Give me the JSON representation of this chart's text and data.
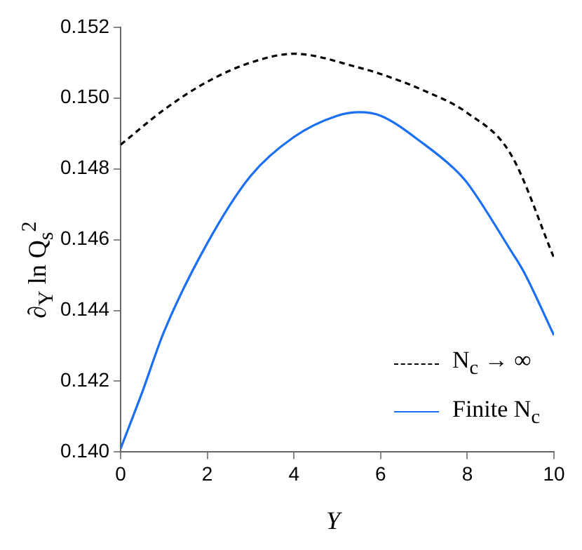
{
  "chart_data": {
    "type": "line",
    "xlabel": "Y",
    "ylabel": "∂$_{Y}$ ln Q$_{s}$$^{2}$",
    "xlim": [
      0,
      10
    ],
    "xticks": [
      0,
      2,
      4,
      6,
      8,
      10
    ],
    "ylim": [
      0.14,
      0.152
    ],
    "yticks": [
      {
        "value": 0.14,
        "label": "0.140"
      },
      {
        "value": 0.142,
        "label": "0.142"
      },
      {
        "value": 0.144,
        "label": "0.144"
      },
      {
        "value": 0.146,
        "label": "0.146"
      },
      {
        "value": 0.148,
        "label": "0.148"
      },
      {
        "value": 0.15,
        "label": "0.150"
      },
      {
        "value": 0.152,
        "label": "0.152"
      }
    ],
    "legend": "bottom right",
    "grid": false,
    "marker": "none",
    "series": [
      {
        "name": "N$_{c}$ → ∞",
        "color": "#000000",
        "line_style": "dashed",
        "x": [
          0,
          1,
          2,
          3,
          4,
          5.5,
          6,
          7,
          8,
          9,
          10
        ],
        "values": [
          0.14868,
          0.14967,
          0.15046,
          0.151,
          0.15125,
          0.15086,
          0.15068,
          0.15021,
          0.14958,
          0.14842,
          0.14549
        ]
      },
      {
        "name": "Finite N$_{c}$",
        "color": "#1a6ff5",
        "line_style": "solid",
        "x": [
          0,
          0.5,
          1,
          2,
          3,
          4,
          5,
          5.5,
          6,
          7,
          7.7,
          8,
          9,
          9.3,
          10
        ],
        "values": [
          0.1401,
          0.1417,
          0.1434,
          0.1459,
          0.1478,
          0.1489,
          0.1495,
          0.1496,
          0.1495,
          0.1487,
          0.148,
          0.1476,
          0.1457,
          0.1451,
          0.1433
        ]
      }
    ]
  }
}
